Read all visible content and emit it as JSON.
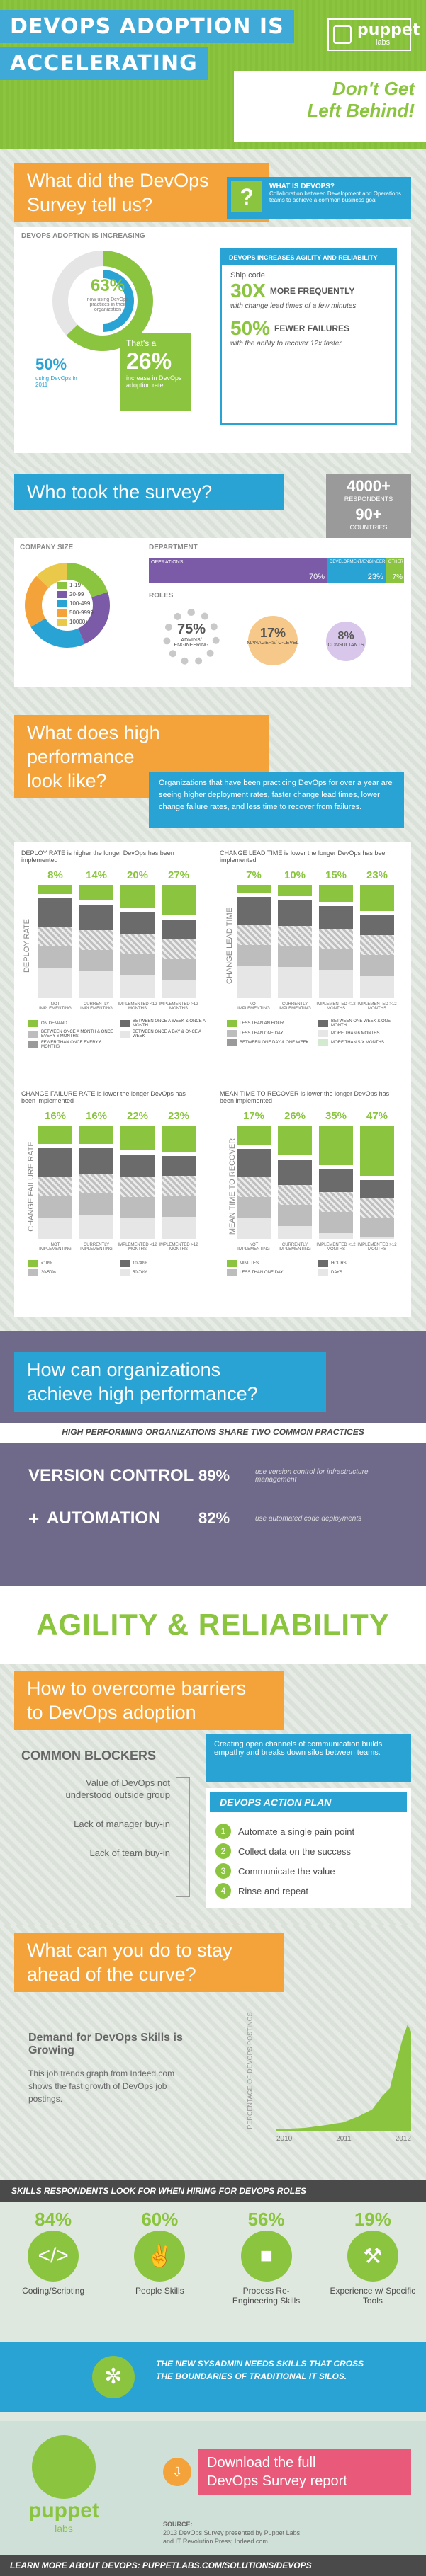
{
  "header": {
    "title_line1": "DEVOPS ADOPTION IS",
    "title_line2": "ACCELERATING",
    "tagline_line1": "Don't Get",
    "tagline_line2": "Left Behind!",
    "logo_text": "puppet",
    "logo_sub": "labs"
  },
  "survey": {
    "heading_line1": "What did the DevOps",
    "heading_line2": "Survey tell us?",
    "adoption_label": "DEVOPS ADOPTION IS INCREASING",
    "pct_63": "63%",
    "pct_63_desc": "now using DevOps practices in their organization",
    "pct_50": "50%",
    "pct_50_desc": "using DevOps in 2011",
    "thats_a": "That's a",
    "pct_26": "26%",
    "increase_desc": "increase in DevOps adoption rate",
    "what_is_title": "WHAT IS DEVOPS?",
    "what_is_text": "Collaboration between Development and Operations teams to achieve a common business goal",
    "agility_title": "DEVOPS INCREASES AGILITY AND RELIABILITY",
    "ship_code": "Ship code",
    "pct_30x": "30X",
    "more_freq": "MORE FREQUENTLY",
    "lead_time": "with change lead times of a few minutes",
    "pct_50b": "50%",
    "fewer_fail": "FEWER FAILURES",
    "recover": "with the ability to recover 12x faster"
  },
  "who": {
    "heading": "Who took the survey?",
    "respondents": "4000+",
    "respondents_label": "RESPONDENTS",
    "countries": "90+",
    "countries_label": "COUNTRIES",
    "company_size_label": "COMPANY SIZE",
    "department_label": "DEPARTMENT",
    "roles_label": "ROLES",
    "sizes": [
      "1-19",
      "20-99",
      "100-499",
      "500-9999",
      "10000+"
    ],
    "dept_ops": "OPERATIONS",
    "dept_dev": "DEVELOPMENT/ENGINEERING",
    "dept_other": "OTHER",
    "dept_ops_pct": "70%",
    "dept_dev_pct": "23%",
    "dept_other_pct": "7%",
    "role1_pct": "75%",
    "role1_label": "ADMINS/ ENGINEERING",
    "role2_pct": "17%",
    "role2_label": "MANAGERS/ C-LEVEL",
    "role3_pct": "8%",
    "role3_label": "CONSULTANTS"
  },
  "highperf": {
    "heading_line1": "What does high performance",
    "heading_line2": "look like?",
    "intro": "Organizations that have been practicing DevOps for over a year are seeing higher deployment rates, faster change lead times, lower change failure rates, and less time to recover from failures.",
    "deploy_title": "DEPLOY RATE is higher the longer DevOps has been implemented",
    "deploy_axis": "DEPLOY RATE",
    "deploy_pcts": [
      "8%",
      "14%",
      "20%",
      "27%"
    ],
    "lead_title": "CHANGE LEAD TIME is lower the longer DevOps has been implemented",
    "lead_axis": "CHANGE LEAD TIME",
    "lead_pcts": [
      "7%",
      "10%",
      "15%",
      "23%"
    ],
    "fail_title": "CHANGE FAILURE RATE is lower the longer DevOps has been implemented",
    "fail_axis": "CHANGE FAILURE RATE",
    "fail_pcts": [
      "16%",
      "16%",
      "22%",
      "23%"
    ],
    "mttr_title": "MEAN TIME TO RECOVER is lower the longer DevOps has been implemented",
    "mttr_axis": "MEAN TIME TO RECOVER",
    "mttr_pcts": [
      "17%",
      "26%",
      "35%",
      "47%"
    ],
    "xlabels": [
      "NOT IMPLEMENTING",
      "CURRENTLY IMPLEMENTING",
      "IMPLEMENTED <12 MONTHS",
      "IMPLEMENTED >12 MONTHS"
    ],
    "deploy_legend": [
      "ON DEMAND",
      "BETWEEN ONCE A WEEK & ONCE A MONTH",
      "BETWEEN ONCE A MONTH & ONCE EVERY 6 MONTHS",
      "BETWEEN ONCE A DAY & ONCE A WEEK",
      "FEWER THAN ONCE EVERY 6 MONTHS"
    ],
    "lead_legend": [
      "LESS THAN AN HOUR",
      "BETWEEN ONE WEEK & ONE MONTH",
      "LESS THAN ONE DAY",
      "MORE THAN 6 MONTHS",
      "BETWEEN ONE DAY & ONE WEEK",
      "MORE THAN SIX MONTHS"
    ],
    "fail_legend": [
      "<10%",
      "10-30%",
      "30-50%",
      "50-70%"
    ],
    "mttr_legend": [
      "MINUTES",
      "HOURS",
      "LESS THAN ONE DAY",
      "DAYS"
    ]
  },
  "achieve": {
    "heading_line1": "How can organizations",
    "heading_line2": "achieve high performance?",
    "practices_banner": "HIGH PERFORMING ORGANIZATIONS SHARE TWO COMMON PRACTICES",
    "vc_label": "VERSION CONTROL",
    "vc_pct": "89%",
    "vc_desc": "use version control for infrastructure management",
    "auto_label": "AUTOMATION",
    "auto_pct": "82%",
    "auto_desc": "use automated code deployments",
    "agility": "AGILITY & RELIABILITY"
  },
  "barriers": {
    "heading_line1": "How to overcome barriers",
    "heading_line2": "to DevOps adoption",
    "common_blockers": "COMMON BLOCKERS",
    "blockers": [
      "Value of DevOps not understood outside group",
      "Lack of manager buy-in",
      "Lack of team buy-in"
    ],
    "comm_text": "Creating open channels of communication builds empathy and breaks down silos between teams.",
    "plan_title": "DEVOPS ACTION PLAN",
    "plan_steps": [
      "Automate a single pain point",
      "Collect data on the success",
      "Communicate the value",
      "Rinse and repeat"
    ],
    "plan_nums": [
      "1",
      "2",
      "3",
      "4"
    ]
  },
  "stay_ahead": {
    "heading_line1": "What can you do to stay",
    "heading_line2": "ahead of the curve?",
    "demand_title": "Demand for DevOps Skills is Growing",
    "demand_text": "This job trends graph from Indeed.com shows the fast growth of DevOps job postings.",
    "graph_axis": "PERCENTAGE OF DEVOPS POSTINGS",
    "years": [
      "2010",
      "2011",
      "2012"
    ]
  },
  "skills": {
    "banner": "SKILLS RESPONDENTS LOOK FOR WHEN HIRING FOR DEVOPS ROLES",
    "items": [
      {
        "pct": "84%",
        "label": "Coding/Scripting",
        "icon": "code-icon"
      },
      {
        "pct": "60%",
        "label": "People Skills",
        "icon": "handshake-icon"
      },
      {
        "pct": "56%",
        "label": "Process Re-Engineering Skills",
        "icon": "process-icon"
      },
      {
        "pct": "19%",
        "label": "Experience w/ Specific Tools",
        "icon": "tools-icon"
      }
    ],
    "sysadmin_text": "THE NEW SYSADMIN NEEDS SKILLS THAT CROSS THE BOUNDARIES OF TRADITIONAL IT SILOS."
  },
  "footer": {
    "logo_text": "puppet",
    "logo_sub": "labs",
    "download_line1": "Download the full",
    "download_line2": "DevOps Survey report",
    "source_label": "SOURCE:",
    "source_text1": "2013 DevOps Survey presented by Puppet Labs",
    "source_text2": "and IT Revolution Press; Indeed.com",
    "learn_more": "LEARN MORE ABOUT DEVOPS: PUPPETLABS.COM/SOLUTIONS/DEVOPS"
  },
  "colors": {
    "green": "#8bc53f",
    "blue": "#29a3d4",
    "orange": "#f3a33a",
    "purple": "#7b5ba7",
    "dark": "#4a4a4a"
  }
}
